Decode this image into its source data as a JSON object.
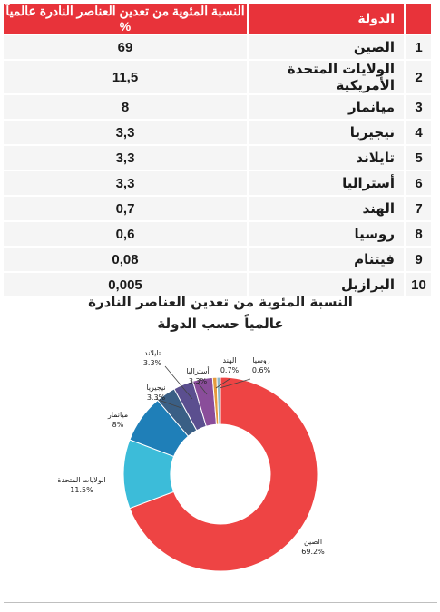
{
  "table": {
    "header": {
      "num": "",
      "country": "الدولة",
      "value": "النسبة المئوية من تعدين العناصر النادرة عالمياً %"
    },
    "rows": [
      {
        "num": "1",
        "country": "الصين",
        "value": "69"
      },
      {
        "num": "2",
        "country": "الولايات المتحدة الأمريكية",
        "value": "11,5"
      },
      {
        "num": "3",
        "country": "ميانمار",
        "value": "8"
      },
      {
        "num": "4",
        "country": "نيجيريا",
        "value": "3,3"
      },
      {
        "num": "5",
        "country": "تايلاند",
        "value": "3,3"
      },
      {
        "num": "6",
        "country": "أستراليا",
        "value": "3,3"
      },
      {
        "num": "7",
        "country": "الهند",
        "value": "0,7"
      },
      {
        "num": "8",
        "country": "روسيا",
        "value": "0,6"
      },
      {
        "num": "9",
        "country": "فيتنام",
        "value": "0,08"
      },
      {
        "num": "10",
        "country": "البرازيل",
        "value": "0,005"
      }
    ]
  },
  "chart_data": {
    "type": "pie",
    "title_line1": "النسبة المئوية من تعدين العناصر النادرة",
    "title_line2": "عالمياً حسب الدولة",
    "slices": [
      {
        "label": "الصين",
        "value": 69.2,
        "pct_label": "69.2%",
        "color": "#ee4444"
      },
      {
        "label": "الولايات المتحدة",
        "value": 11.5,
        "pct_label": "11.5%",
        "color": "#3cbcd9"
      },
      {
        "label": "ميانمار",
        "value": 8,
        "pct_label": "8%",
        "color": "#1f7fb8"
      },
      {
        "label": "نيجيريا",
        "value": 3.3,
        "pct_label": "3.3%",
        "color": "#3a5f85"
      },
      {
        "label": "تايلاند",
        "value": 3.3,
        "pct_label": "3.3%",
        "color": "#5b4f8f"
      },
      {
        "label": "أستراليا",
        "value": 3.3,
        "pct_label": "3.3%",
        "color": "#8a4d9a"
      },
      {
        "label": "الهند",
        "value": 0.7,
        "pct_label": "0.7%",
        "color": "#e59a3c"
      },
      {
        "label": "روسيا",
        "value": 0.6,
        "pct_label": "0.6%",
        "color": "#8fb8c4"
      }
    ]
  }
}
